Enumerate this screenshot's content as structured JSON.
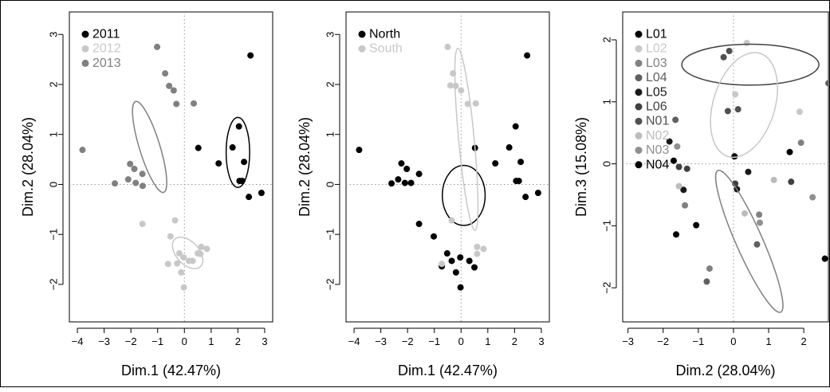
{
  "chart_data": [
    {
      "type": "scatter",
      "xlabel": "Dim.1 (42.47%)",
      "ylabel": "Dim.2 (28.04%)",
      "xlim": [
        -4.3,
        3.3
      ],
      "ylim": [
        -2.75,
        3.45
      ],
      "xticks": [
        -4,
        -3,
        -2,
        -1,
        0,
        1,
        2,
        3
      ],
      "yticks": [
        -2,
        -1,
        0,
        1,
        2,
        3
      ],
      "reference_lines": "dotted at x=0 and y=0",
      "legend_position": "top-left",
      "series": [
        {
          "name": "2011",
          "color": "#000000",
          "points": [
            [
              2.47,
              2.58
            ],
            [
              0.52,
              0.73
            ],
            [
              1.8,
              0.74
            ],
            [
              2.04,
              1.16
            ],
            [
              1.28,
              0.42
            ],
            [
              2.23,
              0.45
            ],
            [
              2.06,
              0.07
            ],
            [
              2.16,
              0.07
            ],
            [
              2.41,
              -0.25
            ],
            [
              2.88,
              -0.17
            ]
          ],
          "ellipse": {
            "cx": 2.0,
            "cy": 0.64,
            "rx": 0.44,
            "ry": 0.7,
            "angle": 0
          }
        },
        {
          "name": "2012",
          "color": "#c8c8c8",
          "points": [
            [
              -0.35,
              -0.72
            ],
            [
              -0.52,
              -1.04
            ],
            [
              -0.19,
              -1.38
            ],
            [
              -0.03,
              -1.46
            ],
            [
              0.31,
              -1.53
            ],
            [
              0.5,
              -1.38
            ],
            [
              0.63,
              -1.25
            ],
            [
              0.84,
              -1.29
            ],
            [
              0.6,
              -1.39
            ],
            [
              0.17,
              -1.53
            ],
            [
              -0.27,
              -1.58
            ],
            [
              -0.12,
              -1.76
            ],
            [
              -0.02,
              -2.06
            ],
            [
              -0.61,
              -1.59
            ],
            [
              -1.57,
              -0.79
            ]
          ],
          "ellipse": {
            "cx": 0.12,
            "cy": -1.37,
            "rx": 0.55,
            "ry": 0.25,
            "angle": -30
          }
        },
        {
          "name": "2013",
          "color": "#808080",
          "points": [
            [
              -3.81,
              0.69
            ],
            [
              -1.02,
              2.75
            ],
            [
              -0.72,
              2.22
            ],
            [
              -0.57,
              1.97
            ],
            [
              -0.4,
              1.88
            ],
            [
              -0.3,
              1.61
            ],
            [
              0.35,
              1.62
            ],
            [
              -2.03,
              0.41
            ],
            [
              -1.87,
              0.31
            ],
            [
              -1.57,
              0.21
            ],
            [
              -2.1,
              0.1
            ],
            [
              -2.6,
              0.02
            ],
            [
              -1.82,
              0.03
            ],
            [
              -1.56,
              -0.03
            ]
          ],
          "ellipse": {
            "cx": -1.3,
            "cy": 0.75,
            "rx": 1.05,
            "ry": 0.3,
            "angle": -60
          }
        }
      ]
    },
    {
      "type": "scatter",
      "xlabel": "Dim.1 (42.47%)",
      "ylabel": "Dim.2 (28.04%)",
      "xlim": [
        -4.3,
        3.3
      ],
      "ylim": [
        -2.75,
        3.45
      ],
      "xticks": [
        -4,
        -3,
        -2,
        -1,
        0,
        1,
        2,
        3
      ],
      "yticks": [
        -2,
        -1,
        0,
        1,
        2,
        3
      ],
      "reference_lines": "dotted at x=0 and y=0",
      "legend_position": "top-left",
      "series": [
        {
          "name": "North",
          "color": "#000000",
          "points": [
            [
              -3.81,
              0.69
            ],
            [
              -2.6,
              0.02
            ],
            [
              -2.23,
              0.42
            ],
            [
              -2.35,
              0.1
            ],
            [
              -2.03,
              0.31
            ],
            [
              -1.87,
              0.03
            ],
            [
              -1.57,
              -0.79
            ],
            [
              -1.02,
              -1.04
            ],
            [
              -0.72,
              -1.64
            ],
            [
              -0.52,
              -1.38
            ],
            [
              -0.35,
              -1.53
            ],
            [
              -0.19,
              -1.76
            ],
            [
              -0.03,
              -1.46
            ],
            [
              -0.02,
              -2.06
            ],
            [
              0.31,
              -1.53
            ],
            [
              0.5,
              -1.66
            ],
            [
              0.52,
              0.73
            ],
            [
              1.28,
              0.42
            ],
            [
              1.8,
              0.74
            ],
            [
              2.04,
              1.16
            ],
            [
              2.06,
              0.07
            ],
            [
              2.16,
              0.07
            ],
            [
              2.23,
              0.45
            ],
            [
              2.41,
              -0.25
            ],
            [
              2.47,
              2.58
            ],
            [
              2.88,
              -0.17
            ],
            [
              -1.57,
              0.21
            ],
            [
              -2.1,
              0.03
            ]
          ],
          "ellipse": {
            "cx": 0.1,
            "cy": -0.22,
            "rx": 0.8,
            "ry": 0.6,
            "angle": 0
          }
        },
        {
          "name": "South",
          "color": "#c8c8c8",
          "points": [
            [
              -0.5,
              2.75
            ],
            [
              -0.3,
              2.22
            ],
            [
              -0.2,
              1.97
            ],
            [
              0.0,
              1.88
            ],
            [
              0.25,
              1.61
            ],
            [
              0.55,
              1.62
            ],
            [
              -0.4,
              1.98
            ],
            [
              0.6,
              -1.25
            ],
            [
              0.84,
              -1.29
            ],
            [
              0.6,
              -1.39
            ],
            [
              -0.35,
              -0.72
            ],
            [
              -0.72,
              -1.59
            ]
          ],
          "ellipse": {
            "cx": 0.2,
            "cy": 0.9,
            "rx": 1.85,
            "ry": 0.28,
            "angle": -80
          }
        }
      ]
    },
    {
      "type": "scatter",
      "xlabel": "Dim.2 (28.04%)",
      "ylabel": "Dim.3 (15.08%)",
      "xlim": [
        -3.15,
        2.7
      ],
      "ylim": [
        -2.55,
        2.45
      ],
      "xticks": [
        -3,
        -2,
        -1,
        0,
        1,
        2
      ],
      "yticks": [
        -2,
        -1,
        0,
        1,
        2
      ],
      "reference_lines": "dotted at x=0 and y=0",
      "legend_position": "top-left",
      "series": [
        {
          "name": "L01",
          "color": "#000000",
          "points": [
            [
              -1.06,
              -0.99
            ],
            [
              1.6,
              0.19
            ],
            [
              2.6,
              -1.53
            ]
          ]
        },
        {
          "name": "L02",
          "color": "#c8c8c8",
          "points": [
            [
              0.38,
              1.95
            ],
            [
              0.05,
              1.12
            ],
            [
              1.88,
              0.84
            ]
          ]
        },
        {
          "name": "L03",
          "color": "#808080",
          "points": [
            [
              0.73,
              -0.82
            ],
            [
              1.92,
              0.34
            ],
            [
              -1.38,
              -0.67
            ],
            [
              -0.68,
              -1.69
            ]
          ]
        },
        {
          "name": "L04",
          "color": "#606060",
          "points": [
            [
              2.7,
              1.3
            ],
            [
              0.67,
              -1.3
            ],
            [
              -1.65,
              0.71
            ],
            [
              -0.76,
              -1.9
            ]
          ]
        },
        {
          "name": "L05",
          "color": "#1a1a1a",
          "points": [
            [
              0.1,
              -0.41
            ],
            [
              -1.42,
              -0.42
            ],
            [
              -1.82,
              0.36
            ],
            [
              0.42,
              -0.13
            ]
          ]
        },
        {
          "name": "L06",
          "color": "#404040",
          "points": [
            [
              -1.32,
              -0.08
            ],
            [
              1.64,
              -0.29
            ],
            [
              -1.55,
              -0.05
            ],
            [
              0.05,
              -0.32
            ]
          ]
        },
        {
          "name": "N01",
          "color": "#505050",
          "points": [
            [
              -0.12,
              1.82
            ],
            [
              -0.28,
              1.72
            ],
            [
              -0.16,
              0.85
            ],
            [
              0.13,
              0.88
            ]
          ]
        },
        {
          "name": "N02",
          "color": "#bcbcbc",
          "points": [
            [
              1.15,
              -0.26
            ],
            [
              -1.55,
              -0.36
            ],
            [
              0.32,
              -0.8
            ]
          ]
        },
        {
          "name": "N03",
          "color": "#909090",
          "points": [
            [
              2.25,
              -0.54
            ],
            [
              -1.6,
              0.28
            ],
            [
              0.75,
              -0.95
            ]
          ]
        },
        {
          "name": "N04",
          "color": "#000000",
          "points": [
            [
              -1.7,
              0.05
            ],
            [
              -1.63,
              -1.14
            ],
            [
              0.03,
              0.12
            ]
          ]
        }
      ],
      "ellipses": [
        {
          "series": "N01",
          "color": "#404040",
          "cx": 0.48,
          "cy": 1.6,
          "rx": 1.95,
          "ry": 0.33,
          "angle": 0
        },
        {
          "series": "L02",
          "color": "#c8c8c8",
          "cx": 0.3,
          "cy": 0.95,
          "rx": 0.85,
          "ry": 0.88,
          "angle": -10
        },
        {
          "series": "L03",
          "color": "#808080",
          "cx": 0.45,
          "cy": -1.25,
          "rx": 1.45,
          "ry": 0.28,
          "angle": -52
        }
      ]
    }
  ]
}
